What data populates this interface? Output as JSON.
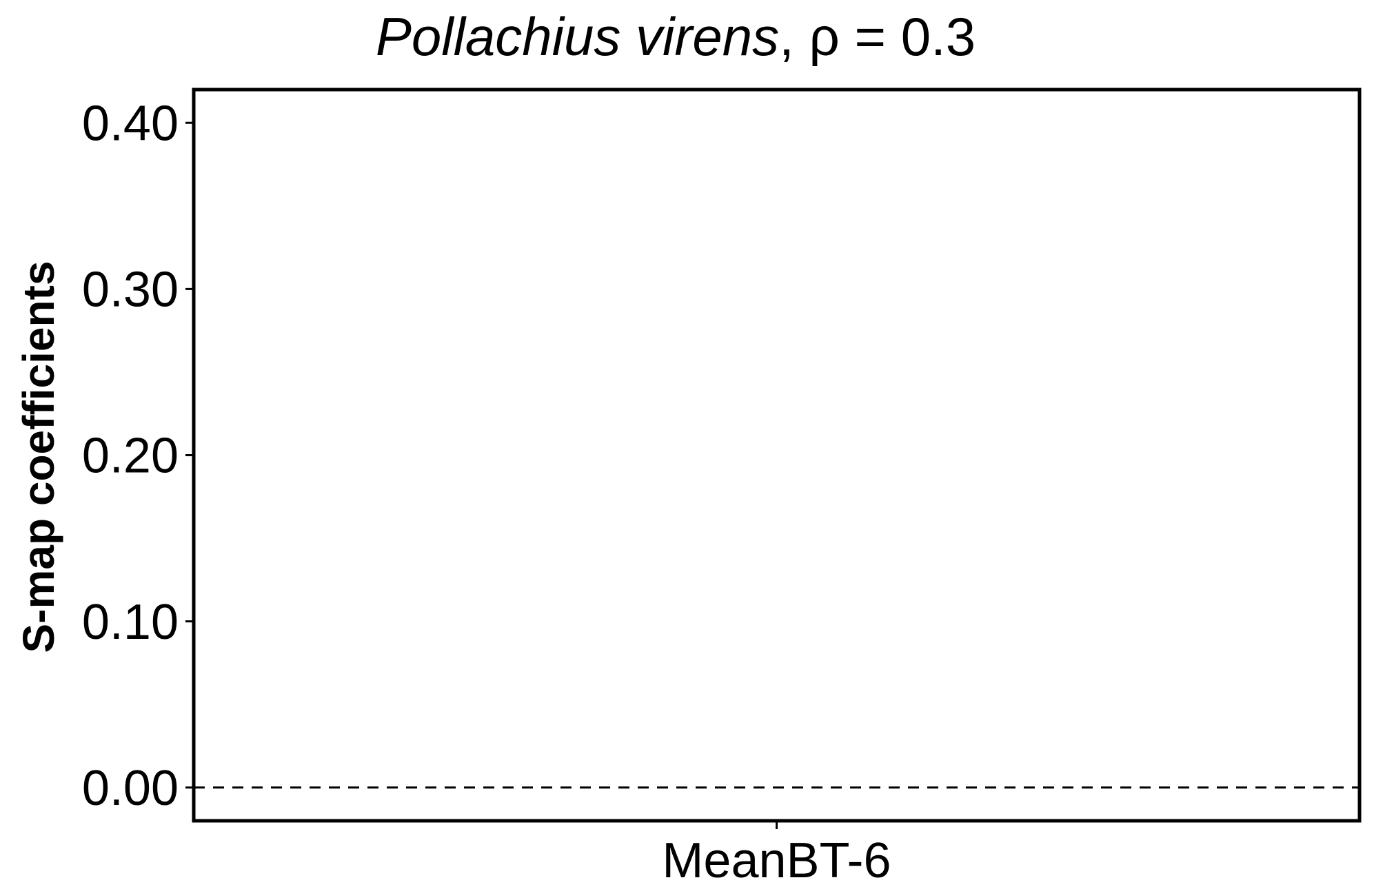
{
  "chart_data": {
    "type": "bar",
    "title": {
      "species": "Pollachius virens",
      "suffix": ", ρ = 0.3"
    },
    "xlabel": "",
    "ylabel": "S-map coefficients",
    "categories": [
      "MeanBT-6"
    ],
    "series": [
      {
        "values": [
          null
        ]
      }
    ],
    "ylim": [
      -0.02,
      0.42
    ],
    "yticks": [
      0.0,
      0.1,
      0.2,
      0.3,
      0.4
    ],
    "ytick_labels": [
      "0.00",
      "0.10",
      "0.20",
      "0.30",
      "0.40"
    ],
    "reference_line": {
      "y": 0,
      "style": "dashed"
    },
    "grid": false,
    "legend": "none"
  }
}
